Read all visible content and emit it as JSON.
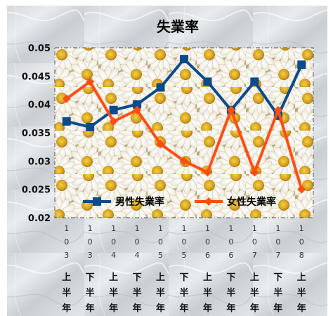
{
  "chart_data": {
    "type": "line",
    "title": "失業率",
    "xlabel": "",
    "ylabel": "",
    "ylim": [
      0.02,
      0.05
    ],
    "yticks": [
      "0.05",
      "0.045",
      "0.04",
      "0.035",
      "0.03",
      "0.025",
      "0.02"
    ],
    "ytick_values": [
      0.05,
      0.045,
      0.04,
      0.035,
      0.03,
      0.025,
      0.02
    ],
    "categories": [
      {
        "digits": [
          "1",
          "0",
          "3"
        ],
        "half": [
          "上",
          "半",
          "年"
        ]
      },
      {
        "digits": [
          "1",
          "0",
          "3"
        ],
        "half": [
          "下",
          "半",
          "年"
        ]
      },
      {
        "digits": [
          "1",
          "0",
          "4"
        ],
        "half": [
          "上",
          "半",
          "年"
        ]
      },
      {
        "digits": [
          "1",
          "0",
          "4"
        ],
        "half": [
          "下",
          "半",
          "年"
        ]
      },
      {
        "digits": [
          "1",
          "0",
          "5"
        ],
        "half": [
          "上",
          "半",
          "年"
        ]
      },
      {
        "digits": [
          "1",
          "0",
          "5"
        ],
        "half": [
          "下",
          "半",
          "年"
        ]
      },
      {
        "digits": [
          "1",
          "0",
          "6"
        ],
        "half": [
          "上",
          "半",
          "年"
        ]
      },
      {
        "digits": [
          "1",
          "0",
          "6"
        ],
        "half": [
          "下",
          "半",
          "年"
        ]
      },
      {
        "digits": [
          "1",
          "0",
          "7"
        ],
        "half": [
          "上",
          "半",
          "年"
        ]
      },
      {
        "digits": [
          "1",
          "0",
          "7"
        ],
        "half": [
          "下",
          "半",
          "年"
        ]
      },
      {
        "digits": [
          "1",
          "0",
          "8"
        ],
        "half": [
          "上",
          "半",
          "年"
        ]
      }
    ],
    "series": [
      {
        "name": "男性失業率",
        "color": "#0b4a8b",
        "marker": "square",
        "values": [
          0.037,
          0.036,
          0.039,
          0.04,
          0.043,
          0.048,
          0.044,
          0.039,
          0.044,
          0.038,
          0.047
        ]
      },
      {
        "name": "女性失業率",
        "color": "#ff4d12",
        "marker": "diamond",
        "values": [
          0.041,
          0.044,
          0.037,
          0.039,
          0.033,
          0.03,
          0.028,
          0.039,
          0.028,
          0.039,
          0.025
        ]
      }
    ],
    "legend_position": "inside-bottom",
    "grid": false,
    "background": "daisy flower pattern"
  }
}
